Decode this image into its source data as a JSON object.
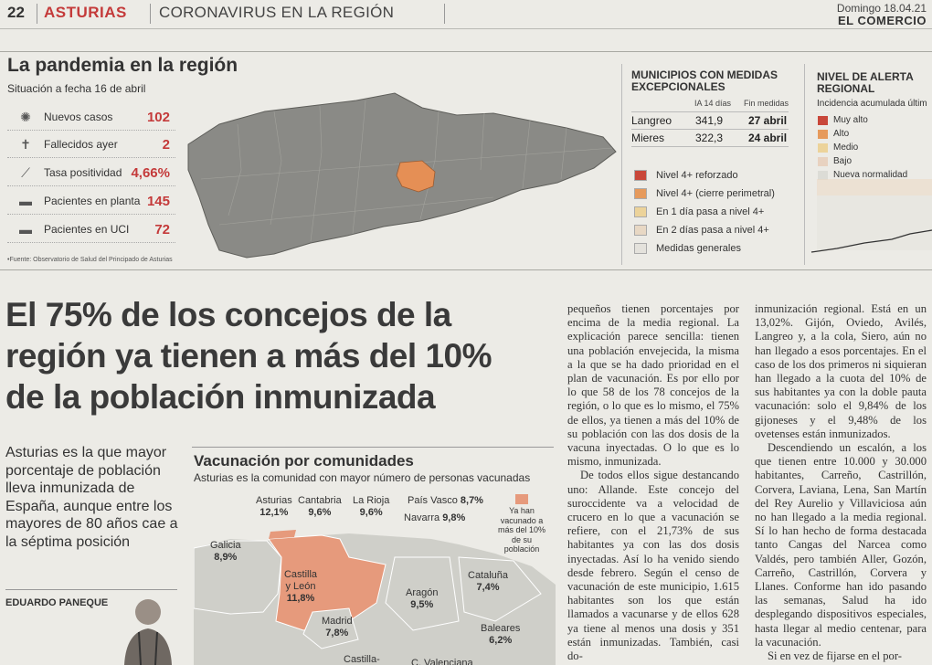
{
  "header": {
    "page_number": "22",
    "section": "ASTURIAS",
    "topic": "CORONAVIRUS EN LA REGIÓN",
    "date": "Domingo 18.04.21",
    "newspaper": "EL COMERCIO"
  },
  "pandemic": {
    "title": "La pandemia en la región",
    "subtitle": "Situación a fecha 16 de abril",
    "stats": [
      {
        "label": "Nuevos casos",
        "value": "102",
        "icon": "virus-icon"
      },
      {
        "label": "Fallecidos ayer",
        "value": "2",
        "icon": "grave-icon"
      },
      {
        "label": "Tasa positividad",
        "value": "4,66%",
        "icon": "test-tube-icon"
      },
      {
        "label": "Pacientes en planta",
        "value": "145",
        "icon": "bed-icon"
      },
      {
        "label": "Pacientes en UCI",
        "value": "72",
        "icon": "icu-bed-icon"
      }
    ],
    "source": "•Fuente: Observatorio de Salud del Principado de Asturias"
  },
  "municipios": {
    "title_line1": "MUNICIPIOS CON MEDIDAS",
    "title_line2": "EXCEPCIONALES",
    "col1": "IA 14 días",
    "col2": "Fin medidas",
    "rows": [
      {
        "name": "Langreo",
        "ia": "341,9",
        "fin": "27 abril"
      },
      {
        "name": "Mieres",
        "ia": "322,3",
        "fin": "24 abril"
      }
    ],
    "legend": [
      {
        "label": "Nivel 4+ reforzado",
        "color": "#c9473a"
      },
      {
        "label": "Nivel 4+ (cierre perimetral)",
        "color": "#e69a5c"
      },
      {
        "label": "En 1 día  pasa a nivel 4+",
        "color": "#ecd39a"
      },
      {
        "label": "En 2 días  pasa a nivel 4+",
        "color": "#e8d8c4"
      },
      {
        "label": "Medidas generales",
        "color": "#e4e2dc"
      }
    ]
  },
  "alerta": {
    "title_line1": "NIVEL DE ALERTA",
    "title_line2": "REGIONAL",
    "subtitle": "Incidencia acumulada últim",
    "legend": [
      {
        "label": "Muy alto",
        "color": "#c9473a"
      },
      {
        "label": "Alto",
        "color": "#e69a5c"
      },
      {
        "label": "Medio",
        "color": "#ecd39a"
      },
      {
        "label": "Bajo",
        "color": "#e8d2c0"
      },
      {
        "label": "Nueva normalidad",
        "color": "#dcdcd6"
      }
    ]
  },
  "article": {
    "headline_1": "El 75% de los concejos de la",
    "headline_2": "región ya tienen a más del 10%",
    "headline_3": "de la población inmunizada",
    "summary": "Asturias es la que mayor porcentaje de población lleva inmunizada de España, aunque entre los mayores de 80 años cae a la séptima posición",
    "author": "EDUARDO PANEQUE",
    "col1_p1": "pequeños tienen porcentajes por encima de la media regional. La explicación parece sencilla: tienen una población envejecida, la misma a la que se ha dado prioridad en el plan de vacunación. Es por ello por lo que 58 de los 78 concejos de la región, o lo que es lo mismo, el 75% de ellos, ya tienen a más del 10% de su población con las dos dosis de la vacuna inyectadas. O lo que es lo mismo, inmunizada.",
    "col1_p2": "De todos ellos sigue destancando uno: Allande. Este concejo del suroccidente va a velocidad de crucero en lo que a vacunación se refiere, con el 21,73% de sus habitantes ya con las dos dosis inyectadas. Así lo ha venido siendo desde febrero. Según el censo de vacunación de este municipio, 1.615 habitantes son los que están llamados a vacunarse y de ellos 628 ya tiene al menos una dosis y 351 están inmunizadas. También, casi do-",
    "col2_p1": "inmunización regional. Está en un 13,02%. Gijón, Oviedo, Avilés, Langreo y, a la cola, Siero, aún no han llegado a esos porcentajes. En el caso de los dos primeros ni siquieran han llegado a la cuota del 10% de sus habitantes ya con la doble pauta vacunación: solo el 9,84% de los gijoneses y el 9,48% de los ovetenses están inmunizados.",
    "col2_p2": "Descendiendo un escalón, a los que tienen entre 10.000 y 30.000 habitantes, Carreño, Castrillón, Corvera, Laviana, Lena, San Martín del Rey Aurelio y Villaviciosa aún no han llegado a la media regional. Sí lo han hecho de forma destacada tanto Cangas del Narcea como Valdés, pero también Aller, Gozón, Carreño, Castrillón, Corvera y Llanes. Conforme han ido pasando las semanas, Salud ha ido desplegando dispositivos especiales, hasta llegar al medio centenar, para la vacunación.",
    "col2_p3": "Si en vez de fijarse en el por-"
  },
  "vacunacion": {
    "title": "Vacunación por comunidades",
    "subtitle": "Asturias es la comunidad con mayor número de personas vacunadas",
    "legend_note": "Ya han vacunado a más del 10% de su población",
    "regions": [
      {
        "name": "Asturias",
        "value": "12,1%"
      },
      {
        "name": "Cantabria",
        "value": "9,6%"
      },
      {
        "name": "La Rioja",
        "value": "9,6%"
      },
      {
        "name": "País Vasco",
        "value": "8,7%"
      },
      {
        "name": "Navarra",
        "value": "9,8%"
      },
      {
        "name": "Galicia",
        "value": "8,9%"
      },
      {
        "name": "Castilla y León",
        "value": "11,8%"
      },
      {
        "name": "Aragón",
        "value": "9,5%"
      },
      {
        "name": "Cataluña",
        "value": "7,4%"
      },
      {
        "name": "Madrid",
        "value": "7,8%"
      },
      {
        "name": "Baleares",
        "value": "6,2%"
      },
      {
        "name": "Castilla-",
        "value": ""
      },
      {
        "name": "C. Valenciana",
        "value": ""
      }
    ],
    "colors": {
      "above_10": "#e69a7c",
      "below_10": "#cfcfc9"
    }
  }
}
